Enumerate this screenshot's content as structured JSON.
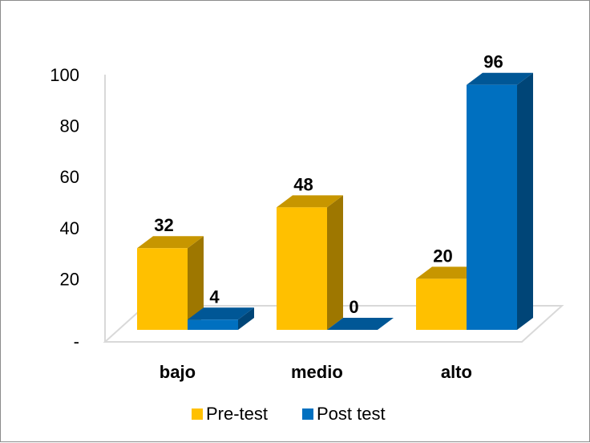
{
  "chart_data": {
    "type": "bar",
    "categories": [
      "bajo",
      "medio",
      "alto"
    ],
    "series": [
      {
        "name": "Pre-test",
        "values": [
          32,
          48,
          20
        ],
        "color": "#FFC000"
      },
      {
        "name": "Post test",
        "values": [
          4,
          0,
          96
        ],
        "color": "#0070C0"
      }
    ],
    "y_ticks": [
      {
        "value": 0,
        "label": "-"
      },
      {
        "value": 20,
        "label": "20"
      },
      {
        "value": 40,
        "label": "40"
      },
      {
        "value": 60,
        "label": "60"
      },
      {
        "value": 80,
        "label": "80"
      },
      {
        "value": 100,
        "label": "100"
      }
    ],
    "ylim": [
      0,
      100
    ],
    "grid": false,
    "legend_position": "bottom",
    "three_d": true
  }
}
